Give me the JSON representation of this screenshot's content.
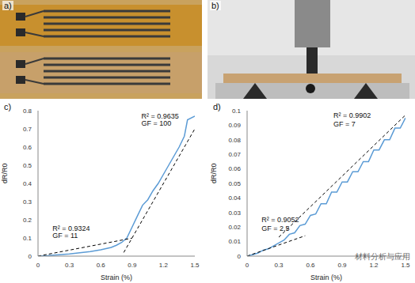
{
  "chart_data": [
    {
      "type": "photo",
      "title": "a)"
    },
    {
      "type": "photo",
      "title": "b)"
    },
    {
      "type": "line",
      "title": "c)",
      "x_label": "Strain (%)",
      "y_label": "dR/R0",
      "xlim": [
        0,
        1.5
      ],
      "xticks": [
        0,
        0.3,
        0.6,
        0.9,
        1.2,
        1.5
      ],
      "ylim": [
        0,
        0.8
      ],
      "yticks": [
        0,
        0.1,
        0.2,
        0.3,
        0.4,
        0.5,
        0.6,
        0.7,
        0.8
      ],
      "grid": false,
      "series": [
        {
          "color": "#5b9bd5",
          "line_style": "solid",
          "x": [
            0,
            0.1,
            0.2,
            0.3,
            0.4,
            0.5,
            0.6,
            0.7,
            0.75,
            0.8,
            0.85,
            0.9,
            0.95,
            1.0,
            1.05,
            1.1,
            1.15,
            1.2,
            1.25,
            1.3,
            1.35,
            1.4,
            1.43,
            1.5
          ],
          "values": [
            0,
            0.003,
            0.008,
            0.012,
            0.018,
            0.025,
            0.035,
            0.048,
            0.06,
            0.075,
            0.1,
            0.16,
            0.22,
            0.28,
            0.31,
            0.36,
            0.4,
            0.45,
            0.5,
            0.55,
            0.6,
            0.66,
            0.75,
            0.77
          ]
        },
        {
          "color": "#000000",
          "line_style": "dashed",
          "x": [
            0,
            0.9
          ],
          "values": [
            0,
            0.099
          ]
        },
        {
          "color": "#000000",
          "line_style": "dashed",
          "x": [
            0.82,
            1.5
          ],
          "values": [
            0.02,
            0.7
          ]
        }
      ],
      "annotations": [
        {
          "text": "R² = 0.9324",
          "x": 0.1,
          "y": 0.155
        },
        {
          "text": "GF = 11",
          "x": 0.1,
          "y": 0.115
        },
        {
          "text": "R² = 0.9635",
          "x": 0.95,
          "y": 0.77
        },
        {
          "text": "GF = 100",
          "x": 0.95,
          "y": 0.73
        }
      ]
    },
    {
      "type": "line",
      "title": "d)",
      "x_label": "Strain (%)",
      "y_label": "dR/R0",
      "xlim": [
        0,
        1.5
      ],
      "xticks": [
        0,
        0.3,
        0.6,
        0.9,
        1.2,
        1.5
      ],
      "ylim": [
        0,
        0.1
      ],
      "yticks": [
        0,
        0.01,
        0.02,
        0.03,
        0.04,
        0.05,
        0.06,
        0.07,
        0.08,
        0.09,
        0.1
      ],
      "grid": false,
      "series": [
        {
          "color": "#5b9bd5",
          "line_style": "solid",
          "x": [
            0,
            0.05,
            0.1,
            0.15,
            0.2,
            0.25,
            0.3,
            0.35,
            0.4,
            0.45,
            0.5,
            0.55,
            0.6,
            0.65,
            0.7,
            0.75,
            0.8,
            0.85,
            0.9,
            0.95,
            1.0,
            1.05,
            1.1,
            1.15,
            1.2,
            1.25,
            1.3,
            1.35,
            1.4,
            1.45,
            1.5
          ],
          "values": [
            0,
            0.001,
            0.002,
            0.004,
            0.005,
            0.007,
            0.009,
            0.011,
            0.015,
            0.016,
            0.021,
            0.022,
            0.028,
            0.029,
            0.036,
            0.036,
            0.044,
            0.044,
            0.051,
            0.051,
            0.058,
            0.058,
            0.065,
            0.065,
            0.073,
            0.073,
            0.08,
            0.08,
            0.088,
            0.088,
            0.095
          ]
        },
        {
          "color": "#000000",
          "line_style": "dashed",
          "x": [
            0,
            0.55
          ],
          "values": [
            0,
            0.014
          ]
        },
        {
          "color": "#000000",
          "line_style": "dashed",
          "x": [
            0.3,
            1.5
          ],
          "values": [
            0.013,
            0.097
          ]
        }
      ],
      "annotations": [
        {
          "text": "R² = 0.9052",
          "x": 0.1,
          "y": 0.025
        },
        {
          "text": "GF = 2.5",
          "x": 0.1,
          "y": 0.019
        },
        {
          "text": "R² = 0.9902",
          "x": 0.78,
          "y": 0.097
        },
        {
          "text": "GF = 7",
          "x": 0.78,
          "y": 0.091
        }
      ]
    }
  ],
  "watermark": "材料分析与应用"
}
